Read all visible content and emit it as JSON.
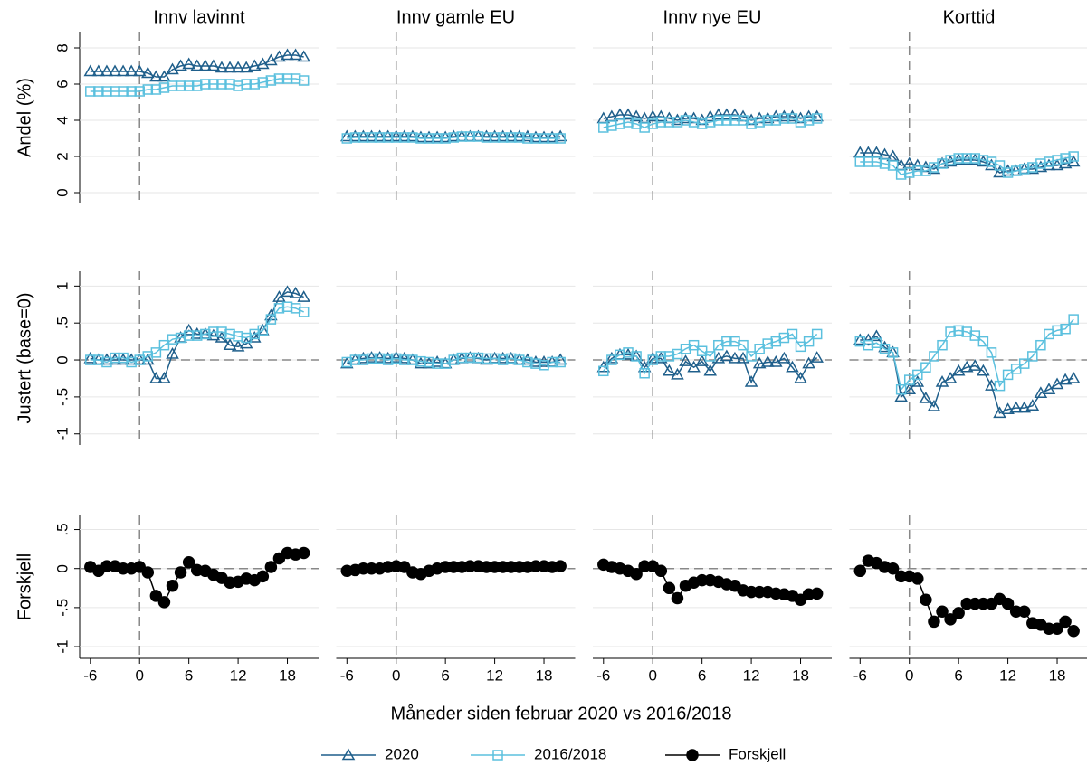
{
  "chart_data": {
    "type": "line",
    "xlabel": "Måneder siden februar 2020 vs 2016/2018",
    "x": [
      -6,
      -5,
      -4,
      -3,
      -2,
      -1,
      0,
      1,
      2,
      3,
      4,
      5,
      6,
      7,
      8,
      9,
      10,
      11,
      12,
      13,
      14,
      15,
      16,
      17,
      18,
      19,
      20
    ],
    "xlim": [
      -7.3,
      21.8
    ],
    "xticks": [
      -6,
      0,
      6,
      12,
      18
    ],
    "vline": 0,
    "grid": true,
    "columns": [
      "Innv lavinnt",
      "Innv gamle EU",
      "Innv nye EU",
      "Korttid"
    ],
    "series": [
      {
        "name": "2020",
        "color": "#1f5f8b",
        "marker": "triangle"
      },
      {
        "name": "2016/2018",
        "color": "#5bc0de",
        "marker": "square"
      },
      {
        "name": "Forskjell",
        "color": "#000000",
        "marker": "circle"
      }
    ],
    "rows": [
      {
        "ylabel": "Andel (%)",
        "ylim": [
          -0.6,
          8.9
        ],
        "yticks": [
          0,
          2,
          4,
          6,
          8
        ],
        "series_index": [
          0,
          1
        ],
        "panels": [
          {
            "values": [
              [
                6.7,
                6.7,
                6.7,
                6.7,
                6.7,
                6.7,
                6.7,
                6.6,
                6.4,
                6.4,
                6.8,
                7.0,
                7.1,
                7.0,
                7.0,
                7.0,
                6.9,
                6.9,
                6.9,
                6.9,
                7.0,
                7.1,
                7.3,
                7.5,
                7.6,
                7.6,
                7.5
              ],
              [
                5.6,
                5.6,
                5.6,
                5.6,
                5.6,
                5.6,
                5.6,
                5.7,
                5.7,
                5.8,
                5.9,
                5.9,
                5.9,
                5.9,
                6.0,
                6.0,
                6.0,
                6.0,
                5.9,
                6.0,
                6.0,
                6.1,
                6.2,
                6.3,
                6.3,
                6.3,
                6.2
              ]
            ]
          },
          {
            "values": [
              [
                3.1,
                3.1,
                3.1,
                3.1,
                3.1,
                3.1,
                3.1,
                3.1,
                3.1,
                3.05,
                3.05,
                3.05,
                3.05,
                3.1,
                3.1,
                3.1,
                3.1,
                3.1,
                3.1,
                3.1,
                3.1,
                3.1,
                3.1,
                3.05,
                3.05,
                3.05,
                3.1
              ],
              [
                3.0,
                3.05,
                3.05,
                3.05,
                3.05,
                3.05,
                3.05,
                3.05,
                3.05,
                3.0,
                3.0,
                3.0,
                3.0,
                3.05,
                3.1,
                3.1,
                3.1,
                3.05,
                3.05,
                3.05,
                3.05,
                3.05,
                3.0,
                3.0,
                3.0,
                3.0,
                3.0
              ]
            ]
          },
          {
            "values": [
              [
                4.1,
                4.2,
                4.3,
                4.3,
                4.2,
                4.1,
                4.2,
                4.2,
                4.1,
                4.0,
                4.1,
                4.1,
                4.0,
                4.2,
                4.3,
                4.3,
                4.3,
                4.2,
                4.0,
                4.1,
                4.1,
                4.2,
                4.2,
                4.2,
                4.1,
                4.2,
                4.2
              ],
              [
                3.6,
                3.7,
                3.8,
                3.9,
                3.8,
                3.6,
                3.8,
                3.9,
                3.9,
                3.9,
                4.0,
                3.9,
                3.8,
                3.9,
                4.0,
                4.0,
                4.0,
                4.0,
                3.8,
                3.9,
                4.0,
                4.0,
                4.1,
                4.1,
                3.9,
                4.0,
                4.1
              ]
            ]
          },
          {
            "values": [
              [
                2.2,
                2.2,
                2.2,
                2.1,
                2.0,
                1.5,
                1.6,
                1.5,
                1.4,
                1.3,
                1.6,
                1.7,
                1.8,
                1.8,
                1.8,
                1.7,
                1.5,
                1.1,
                1.2,
                1.2,
                1.3,
                1.3,
                1.4,
                1.5,
                1.5,
                1.6,
                1.7
              ],
              [
                1.7,
                1.7,
                1.7,
                1.6,
                1.5,
                1.0,
                1.1,
                1.2,
                1.2,
                1.4,
                1.6,
                1.8,
                1.9,
                1.9,
                1.9,
                1.8,
                1.7,
                1.5,
                1.1,
                1.2,
                1.3,
                1.4,
                1.6,
                1.7,
                1.8,
                1.9,
                2.0
              ]
            ]
          }
        ]
      },
      {
        "ylabel": "Justert (base=0)",
        "ylim": [
          -1.15,
          1.2
        ],
        "refline": 0,
        "series_index": [
          0,
          1
        ],
        "yticks": [
          {
            "value": -1,
            "label": "-1"
          },
          {
            "value": -0.5,
            "label": "-.5"
          },
          0,
          {
            "value": 0.5,
            "label": ".5"
          },
          1
        ],
        "panels": [
          {
            "values": [
              [
                0.02,
                0.0,
                0.0,
                0.0,
                0.0,
                0.0,
                0.0,
                0.0,
                -0.25,
                -0.25,
                0.08,
                0.3,
                0.4,
                0.35,
                0.35,
                0.33,
                0.3,
                0.2,
                0.18,
                0.22,
                0.3,
                0.4,
                0.6,
                0.85,
                0.92,
                0.9,
                0.85
              ],
              [
                0.0,
                0.0,
                -0.03,
                0.03,
                0.03,
                -0.03,
                0.0,
                0.05,
                0.1,
                0.2,
                0.28,
                0.3,
                0.33,
                0.33,
                0.35,
                0.38,
                0.38,
                0.35,
                0.32,
                0.3,
                0.35,
                0.4,
                0.55,
                0.7,
                0.72,
                0.7,
                0.65
              ]
            ]
          },
          {
            "values": [
              [
                -0.05,
                0.0,
                0.02,
                0.03,
                0.03,
                0.02,
                0.03,
                0.02,
                0.0,
                -0.05,
                -0.05,
                -0.03,
                -0.05,
                0.0,
                0.02,
                0.03,
                0.02,
                0.0,
                0.02,
                0.02,
                0.02,
                0.0,
                0.0,
                -0.03,
                -0.03,
                -0.03,
                0.0
              ],
              [
                -0.03,
                0.0,
                0.0,
                0.02,
                0.02,
                0.0,
                0.02,
                0.0,
                0.0,
                -0.02,
                -0.03,
                -0.05,
                -0.05,
                0.0,
                0.03,
                0.03,
                0.03,
                0.02,
                0.02,
                0.0,
                0.02,
                0.0,
                -0.03,
                -0.05,
                -0.07,
                -0.03,
                -0.03
              ]
            ]
          },
          {
            "values": [
              [
                -0.1,
                0.02,
                0.07,
                0.07,
                0.05,
                -0.1,
                0.02,
                0.02,
                -0.15,
                -0.2,
                -0.02,
                -0.1,
                -0.02,
                -0.15,
                0.02,
                0.05,
                0.02,
                0.02,
                -0.3,
                -0.05,
                -0.03,
                -0.03,
                0.02,
                -0.1,
                -0.25,
                -0.05,
                0.03
              ],
              [
                -0.15,
                0.0,
                0.07,
                0.1,
                0.05,
                -0.18,
                0.0,
                0.05,
                0.05,
                0.08,
                0.15,
                0.2,
                0.12,
                0.05,
                0.2,
                0.25,
                0.25,
                0.2,
                0.05,
                0.15,
                0.22,
                0.25,
                0.3,
                0.35,
                0.18,
                0.25,
                0.35
              ]
            ]
          },
          {
            "values": [
              [
                0.27,
                0.27,
                0.32,
                0.17,
                0.1,
                -0.5,
                -0.4,
                -0.3,
                -0.52,
                -0.63,
                -0.3,
                -0.25,
                -0.15,
                -0.1,
                -0.08,
                -0.15,
                -0.35,
                -0.72,
                -0.67,
                -0.65,
                -0.65,
                -0.62,
                -0.45,
                -0.4,
                -0.33,
                -0.27,
                -0.25
              ],
              [
                0.25,
                0.2,
                0.23,
                0.15,
                0.1,
                -0.4,
                -0.27,
                -0.2,
                -0.1,
                0.05,
                0.2,
                0.38,
                0.4,
                0.38,
                0.33,
                0.25,
                0.1,
                -0.35,
                -0.2,
                -0.12,
                -0.05,
                0.05,
                0.2,
                0.35,
                0.4,
                0.42,
                0.55
              ]
            ]
          }
        ]
      },
      {
        "ylabel": "Forskjell",
        "ylim": [
          -1.15,
          0.68
        ],
        "refline": 0,
        "series_index": [
          2
        ],
        "yticks": [
          {
            "value": -1,
            "label": "-1"
          },
          {
            "value": -0.5,
            "label": "-.5"
          },
          0,
          {
            "value": 0.5,
            "label": ".5"
          }
        ],
        "panels": [
          {
            "values": [
              [
                0.02,
                -0.03,
                0.03,
                0.03,
                0.0,
                0.0,
                0.02,
                -0.05,
                -0.35,
                -0.43,
                -0.22,
                -0.05,
                0.08,
                -0.02,
                -0.03,
                -0.08,
                -0.12,
                -0.18,
                -0.17,
                -0.13,
                -0.15,
                -0.1,
                0.02,
                0.13,
                0.2,
                0.18,
                0.2
              ]
            ]
          },
          {
            "values": [
              [
                -0.03,
                -0.02,
                0.0,
                0.0,
                0.0,
                0.02,
                0.03,
                0.02,
                -0.05,
                -0.07,
                -0.03,
                0.0,
                0.02,
                0.02,
                0.02,
                0.03,
                0.03,
                0.02,
                0.02,
                0.02,
                0.02,
                0.02,
                0.02,
                0.03,
                0.03,
                0.02,
                0.03
              ]
            ]
          },
          {
            "values": [
              [
                0.05,
                0.02,
                0.0,
                -0.03,
                -0.07,
                0.03,
                0.03,
                -0.03,
                -0.25,
                -0.38,
                -0.22,
                -0.18,
                -0.15,
                -0.15,
                -0.17,
                -0.2,
                -0.22,
                -0.28,
                -0.3,
                -0.3,
                -0.3,
                -0.32,
                -0.33,
                -0.35,
                -0.4,
                -0.33,
                -0.32
              ]
            ]
          },
          {
            "values": [
              [
                -0.03,
                0.1,
                0.07,
                0.02,
                0.0,
                -0.1,
                -0.1,
                -0.13,
                -0.4,
                -0.68,
                -0.55,
                -0.65,
                -0.57,
                -0.45,
                -0.45,
                -0.45,
                -0.45,
                -0.39,
                -0.45,
                -0.55,
                -0.55,
                -0.7,
                -0.72,
                -0.77,
                -0.77,
                -0.68,
                -0.8
              ]
            ]
          }
        ]
      }
    ]
  }
}
